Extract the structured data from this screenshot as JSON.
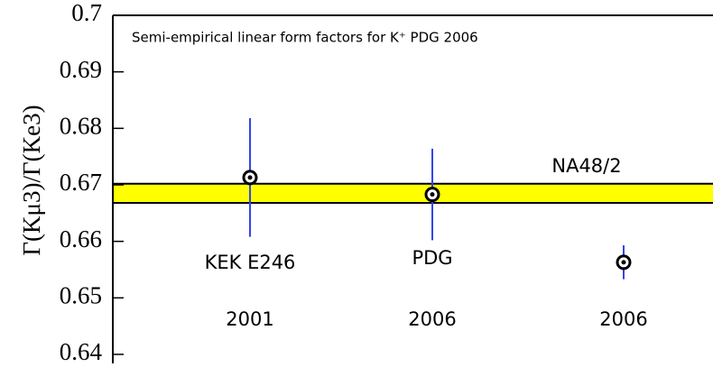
{
  "chart_data": {
    "type": "errorbar",
    "title": "Semi-empirical linear form factors for K⁺ PDG 2006",
    "y_label": "Γ(Kμ3)/Γ(Ke3)",
    "categories": [
      "KEK E246",
      "PDG",
      null
    ],
    "years": [
      "2001",
      "2006",
      "2006"
    ],
    "values": [
      0.6713,
      0.6683,
      0.6563
    ],
    "errors": [
      0.0105,
      0.0081,
      0.003
    ],
    "band": {
      "name": "NA48/2",
      "low": 0.6668,
      "high": 0.6702,
      "color": "#ffff00"
    },
    "marker_color": "#000000",
    "errorbar_color": "#3344ee",
    "ylim": [
      0.64,
      0.7
    ],
    "yticks": [
      0.64,
      0.65,
      0.66,
      0.67,
      0.68,
      0.69,
      0.7
    ]
  }
}
